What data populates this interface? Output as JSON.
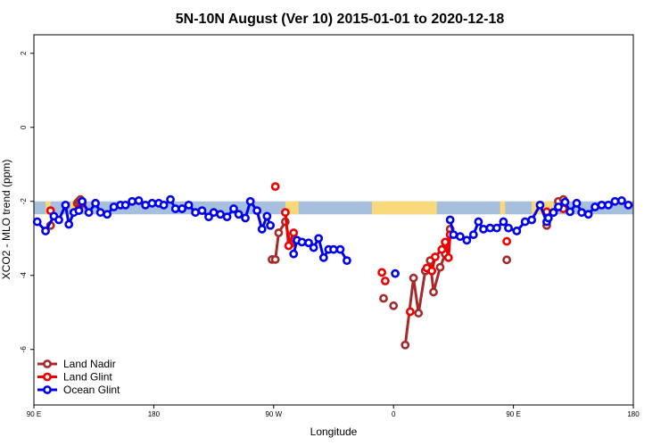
{
  "chart_data": {
    "type": "line",
    "title": "5N-10N August (Ver 10)   2015-01-01 to 2020-12-18",
    "xlabel": "Longitude",
    "ylabel": "XCO2 - MLO trend (ppm)",
    "xlim": [
      90,
      450
    ],
    "ylim": [
      -7.5,
      2.5
    ],
    "x_ticks": [
      {
        "value": 90,
        "label": "90 E"
      },
      {
        "value": 162,
        "label": "180"
      },
      {
        "value": 234,
        "label": "90 W"
      },
      {
        "value": 306,
        "label": "0"
      },
      {
        "value": 378,
        "label": "90 E"
      },
      {
        "value": 450,
        "label": "180"
      }
    ],
    "y_ticks": [
      {
        "value": 2,
        "label": "2"
      },
      {
        "value": 0,
        "label": "0"
      },
      {
        "value": -2,
        "label": "-2"
      },
      {
        "value": -4,
        "label": "-4"
      },
      {
        "value": -6,
        "label": "-6"
      }
    ],
    "land_mask_band": {
      "ymin": -2.35,
      "ymax": -2.0,
      "ocean_color": "#a5bfdc",
      "land_color": "#f8d878",
      "land_segments": [
        [
          97,
          100
        ],
        [
          112,
          119
        ],
        [
          241,
          249
        ],
        [
          293,
          332
        ],
        [
          370,
          373
        ],
        [
          389,
          402
        ]
      ]
    },
    "series": [
      {
        "name": "Land Nadir",
        "color": "#a52a2a",
        "points": [
          [
            100,
            -2.65
          ],
          [
            116,
            -2.05
          ],
          [
            117,
            -2.0
          ],
          [
            118,
            -1.95
          ],
          [
            233,
            -3.57
          ],
          [
            235,
            -3.57
          ],
          [
            237,
            -2.85
          ],
          [
            241,
            -2.55
          ],
          [
            244,
            -3.15
          ],
          [
            300,
            -4.62
          ],
          [
            306,
            -4.82
          ],
          [
            313,
            -5.88
          ],
          [
            318,
            -4.07
          ],
          [
            321,
            -5.02
          ],
          [
            325,
            -3.88
          ],
          [
            328,
            -3.6
          ],
          [
            330,
            -4.45
          ],
          [
            334,
            -3.78
          ],
          [
            337,
            -3.42
          ],
          [
            340,
            -2.75
          ],
          [
            374,
            -3.58
          ],
          [
            398,
            -2.65
          ],
          [
            402,
            -2.3
          ],
          [
            405,
            -2.0
          ],
          [
            408,
            -1.95
          ]
        ],
        "lines": [
          [
            [
              116,
              -2.05
            ],
            [
              117,
              -2.0
            ],
            [
              118,
              -1.95
            ]
          ],
          [
            [
              233,
              -3.57
            ],
            [
              235,
              -3.57
            ],
            [
              237,
              -2.85
            ],
            [
              241,
              -2.55
            ],
            [
              244,
              -3.15
            ]
          ],
          [
            [
              313,
              -5.88
            ],
            [
              318,
              -4.07
            ],
            [
              321,
              -5.02
            ],
            [
              325,
              -3.88
            ],
            [
              328,
              -3.6
            ],
            [
              330,
              -4.45
            ],
            [
              334,
              -3.78
            ],
            [
              337,
              -3.42
            ],
            [
              340,
              -2.75
            ]
          ],
          [
            [
              402,
              -2.3
            ],
            [
              405,
              -2.0
            ],
            [
              408,
              -1.95
            ]
          ]
        ]
      },
      {
        "name": "Land Glint",
        "color": "#ee0000",
        "points": [
          [
            100,
            -2.25
          ],
          [
            117,
            -2.2
          ],
          [
            119,
            -2.05
          ],
          [
            235,
            -1.6
          ],
          [
            241,
            -2.3
          ],
          [
            243,
            -3.2
          ],
          [
            246,
            -2.85
          ],
          [
            299,
            -3.92
          ],
          [
            301,
            -4.15
          ],
          [
            316,
            -4.98
          ],
          [
            326,
            -3.8
          ],
          [
            329,
            -3.88
          ],
          [
            331,
            -3.5
          ],
          [
            335,
            -3.3
          ],
          [
            337,
            -3.1
          ],
          [
            339,
            -3.52
          ],
          [
            340,
            -2.9
          ],
          [
            374,
            -3.08
          ],
          [
            398,
            -2.28
          ],
          [
            408,
            -2.2
          ]
        ],
        "lines": [
          [
            [
              241,
              -2.3
            ],
            [
              243,
              -3.2
            ],
            [
              246,
              -2.85
            ]
          ],
          [
            [
              326,
              -3.8
            ],
            [
              329,
              -3.88
            ],
            [
              331,
              -3.5
            ],
            [
              335,
              -3.3
            ],
            [
              337,
              -3.1
            ],
            [
              339,
              -3.52
            ],
            [
              340,
              -2.9
            ]
          ]
        ]
      },
      {
        "name": "Ocean Glint",
        "color": "#0000ee",
        "points": [
          [
            92,
            -2.55
          ],
          [
            97,
            -2.8
          ],
          [
            102,
            -2.4
          ],
          [
            105,
            -2.5
          ],
          [
            109,
            -2.1
          ],
          [
            111,
            -2.62
          ],
          [
            114,
            -2.3
          ],
          [
            117,
            -2.25
          ],
          [
            119,
            -2.0
          ],
          [
            123,
            -2.3
          ],
          [
            127,
            -2.05
          ],
          [
            130,
            -2.3
          ],
          [
            134,
            -2.35
          ],
          [
            138,
            -2.15
          ],
          [
            142,
            -2.1
          ],
          [
            145,
            -2.1
          ],
          [
            149,
            -2.0
          ],
          [
            153,
            -1.98
          ],
          [
            157,
            -2.1
          ],
          [
            161,
            -2.05
          ],
          [
            165,
            -2.05
          ],
          [
            168,
            -2.1
          ],
          [
            172,
            -1.95
          ],
          [
            175,
            -2.2
          ],
          [
            179,
            -2.2
          ],
          [
            183,
            -2.1
          ],
          [
            187,
            -2.3
          ],
          [
            191,
            -2.25
          ],
          [
            195,
            -2.42
          ],
          [
            198,
            -2.3
          ],
          [
            202,
            -2.35
          ],
          [
            206,
            -2.42
          ],
          [
            210,
            -2.2
          ],
          [
            213,
            -2.35
          ],
          [
            217,
            -2.45
          ],
          [
            220,
            -2.0
          ],
          [
            224,
            -2.25
          ],
          [
            227,
            -2.75
          ],
          [
            230,
            -2.4
          ],
          [
            232,
            -2.65
          ],
          [
            246,
            -3.42
          ],
          [
            248,
            -3.05
          ],
          [
            251,
            -3.1
          ],
          [
            255,
            -3.12
          ],
          [
            258,
            -3.25
          ],
          [
            261,
            -3.0
          ],
          [
            264,
            -3.52
          ],
          [
            267,
            -3.3
          ],
          [
            270,
            -3.3
          ],
          [
            274,
            -3.3
          ],
          [
            278,
            -3.6
          ],
          [
            307,
            -3.95
          ],
          [
            340,
            -2.5
          ],
          [
            342,
            -2.9
          ],
          [
            346,
            -2.95
          ],
          [
            350,
            -3.05
          ],
          [
            354,
            -2.9
          ],
          [
            357,
            -2.55
          ],
          [
            360,
            -2.75
          ],
          [
            364,
            -2.72
          ],
          [
            368,
            -2.72
          ],
          [
            372,
            -2.55
          ],
          [
            375,
            -2.72
          ],
          [
            380,
            -2.8
          ],
          [
            385,
            -2.55
          ],
          [
            389,
            -2.5
          ],
          [
            394,
            -2.1
          ],
          [
            398,
            -2.55
          ],
          [
            399,
            -2.45
          ],
          [
            402,
            -2.3
          ],
          [
            405,
            -2.15
          ],
          [
            409,
            -2.02
          ],
          [
            412,
            -2.28
          ],
          [
            416,
            -2.05
          ],
          [
            419,
            -2.3
          ],
          [
            423,
            -2.35
          ],
          [
            427,
            -2.15
          ],
          [
            431,
            -2.1
          ],
          [
            435,
            -2.1
          ],
          [
            439,
            -2.0
          ],
          [
            443,
            -1.98
          ],
          [
            447,
            -2.1
          ]
        ],
        "lines": [
          [
            [
              92,
              -2.55
            ],
            [
              97,
              -2.8
            ],
            [
              102,
              -2.4
            ],
            [
              105,
              -2.5
            ],
            [
              109,
              -2.1
            ],
            [
              111,
              -2.62
            ],
            [
              114,
              -2.3
            ],
            [
              117,
              -2.25
            ],
            [
              119,
              -2.0
            ],
            [
              123,
              -2.3
            ],
            [
              127,
              -2.05
            ],
            [
              130,
              -2.3
            ],
            [
              134,
              -2.35
            ],
            [
              138,
              -2.15
            ],
            [
              142,
              -2.1
            ],
            [
              145,
              -2.1
            ],
            [
              149,
              -2.0
            ],
            [
              153,
              -1.98
            ],
            [
              157,
              -2.1
            ],
            [
              161,
              -2.05
            ],
            [
              165,
              -2.05
            ],
            [
              168,
              -2.1
            ],
            [
              172,
              -1.95
            ],
            [
              175,
              -2.2
            ],
            [
              179,
              -2.2
            ],
            [
              183,
              -2.1
            ],
            [
              187,
              -2.3
            ],
            [
              191,
              -2.25
            ],
            [
              195,
              -2.42
            ],
            [
              198,
              -2.3
            ],
            [
              202,
              -2.35
            ],
            [
              206,
              -2.42
            ],
            [
              210,
              -2.2
            ],
            [
              213,
              -2.35
            ],
            [
              217,
              -2.45
            ],
            [
              220,
              -2.0
            ],
            [
              224,
              -2.25
            ],
            [
              227,
              -2.75
            ],
            [
              230,
              -2.4
            ],
            [
              232,
              -2.65
            ]
          ],
          [
            [
              246,
              -3.42
            ],
            [
              248,
              -3.05
            ],
            [
              251,
              -3.1
            ],
            [
              255,
              -3.12
            ],
            [
              258,
              -3.25
            ],
            [
              261,
              -3.0
            ],
            [
              264,
              -3.52
            ],
            [
              267,
              -3.3
            ],
            [
              270,
              -3.3
            ],
            [
              274,
              -3.3
            ],
            [
              278,
              -3.6
            ]
          ],
          [
            [
              340,
              -2.5
            ],
            [
              342,
              -2.9
            ],
            [
              346,
              -2.95
            ],
            [
              350,
              -3.05
            ],
            [
              354,
              -2.9
            ],
            [
              357,
              -2.55
            ],
            [
              360,
              -2.75
            ],
            [
              364,
              -2.72
            ],
            [
              368,
              -2.72
            ],
            [
              372,
              -2.55
            ],
            [
              375,
              -2.72
            ],
            [
              380,
              -2.8
            ],
            [
              385,
              -2.55
            ],
            [
              389,
              -2.5
            ],
            [
              394,
              -2.1
            ],
            [
              398,
              -2.55
            ],
            [
              399,
              -2.45
            ],
            [
              402,
              -2.3
            ],
            [
              405,
              -2.15
            ],
            [
              409,
              -2.02
            ],
            [
              412,
              -2.28
            ],
            [
              416,
              -2.05
            ],
            [
              419,
              -2.3
            ],
            [
              423,
              -2.35
            ],
            [
              427,
              -2.15
            ],
            [
              431,
              -2.1
            ],
            [
              435,
              -2.1
            ],
            [
              439,
              -2.0
            ],
            [
              443,
              -1.98
            ],
            [
              447,
              -2.1
            ]
          ]
        ]
      }
    ],
    "legend": {
      "position": "bottom-left",
      "entries": [
        "Land Nadir",
        "Land Glint",
        "Ocean Glint"
      ]
    }
  }
}
